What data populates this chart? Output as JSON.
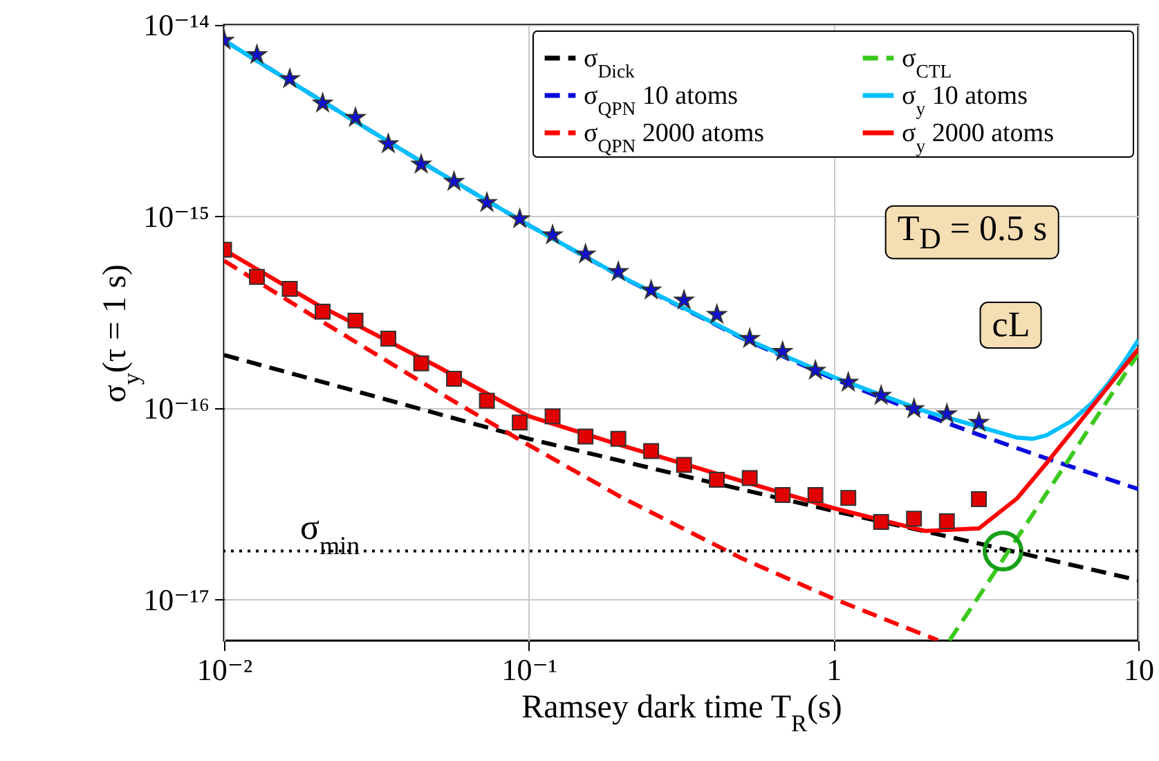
{
  "chart_data": {
    "type": "line",
    "xlabel": "Ramsey dark time T$_{R}$(s)",
    "ylabel": "σ$_{y}$(τ = 1 s)",
    "log": "xy",
    "xlim": [
      0.01,
      10
    ],
    "ylim": [
      6.1e-18,
      1e-14
    ],
    "xticks": [
      {
        "value": 0.01,
        "label": "10⁻²"
      },
      {
        "value": 0.1,
        "label": "10⁻¹"
      },
      1,
      10
    ],
    "yticks": [
      {
        "value": 1e-17,
        "label": "10⁻¹⁷"
      },
      {
        "value": 1e-16,
        "label": "10⁻¹⁶"
      },
      {
        "value": 1e-15,
        "label": "10⁻¹⁵"
      },
      {
        "value": 1e-14,
        "label": "10⁻¹⁴"
      }
    ],
    "grid": true,
    "legend": "top right",
    "series": [
      {
        "name": "σ$_{Dick}$",
        "color": "#000000",
        "line_style": "dashed",
        "x": [
          0.01,
          0.03,
          0.1,
          0.3,
          1,
          3,
          10
        ],
        "values": [
          1.89e-16,
          1.17e-16,
          6.9e-17,
          4.54e-17,
          2.9e-17,
          1.96e-17,
          1.26e-17
        ]
      },
      {
        "name": "σ$_{QPN}$ 10 atoms",
        "color": "#0a0adc",
        "line_style": "dashed",
        "x": [
          0.01,
          0.02,
          0.05,
          0.1,
          0.2,
          0.5,
          1,
          2,
          3,
          5,
          10
        ],
        "values": [
          8.3e-15,
          4.19e-15,
          1.72e-15,
          9e-16,
          4.86e-16,
          2.32e-16,
          1.42e-16,
          9.19e-17,
          7.25e-17,
          5.45e-17,
          3.77e-17
        ]
      },
      {
        "name": "σ$_{QPN}$ 2000 atoms",
        "color": "#ff0000",
        "line_style": "dashed",
        "x": [
          0.01,
          0.02,
          0.05,
          0.1,
          0.2,
          0.5,
          1,
          2,
          2.2
        ],
        "values": [
          5.87e-16,
          2.96e-16,
          1.22e-16,
          6.4e-17,
          3.44e-17,
          1.64e-17,
          1.01e-17,
          6.5e-18,
          6.14e-18
        ]
      },
      {
        "name": "σ$_{CTL}$",
        "color": "#3cc81e",
        "line_style": "dashed",
        "x": [
          2.4,
          3,
          4,
          5,
          7,
          10
        ],
        "values": [
          6.1e-18,
          1.04e-17,
          2.09e-17,
          3.58e-17,
          8.1e-17,
          1.92e-16
        ]
      },
      {
        "name": "σ$_{y}$ 10 atoms",
        "color": "#00bfff",
        "line_style": "solid",
        "x": [
          0.01,
          0.02,
          0.05,
          0.1,
          0.2,
          0.5,
          1,
          2,
          3,
          4,
          4.5,
          5,
          6,
          7,
          8,
          9,
          10
        ],
        "values": [
          8.3e-15,
          4.19e-15,
          1.72e-15,
          9e-16,
          4.88e-16,
          2.34e-16,
          1.45e-16,
          9.6e-17,
          8e-17,
          7e-17,
          6.9e-17,
          7.2e-17,
          8.5e-17,
          1.05e-16,
          1.35e-16,
          1.75e-16,
          2.26e-16
        ]
      },
      {
        "name": "σ$_{y}$ 2000 atoms",
        "color": "#ff0000",
        "line_style": "solid",
        "x": [
          0.01,
          0.02,
          0.05,
          0.1,
          0.2,
          0.5,
          1,
          2,
          3,
          4,
          5,
          7,
          10
        ],
        "values": [
          6.7e-16,
          3.5e-16,
          1.65e-16,
          9.05e-17,
          6.4e-17,
          4.15e-17,
          3e-17,
          2.28e-17,
          2.35e-17,
          3.37e-17,
          5.15e-17,
          1e-16,
          2.03e-16
        ]
      },
      {
        "type": "scatter",
        "color": "#1010d0",
        "marker": "star",
        "x": [
          0.01,
          0.01282,
          0.01643,
          0.02106,
          0.027,
          0.0346,
          0.04435,
          0.05685,
          0.07287,
          0.0934,
          0.1197,
          0.1535,
          0.1967,
          0.2521,
          0.3232,
          0.4142,
          0.531,
          0.6806,
          0.8724,
          1.118,
          1.433,
          1.837,
          2.355,
          3.0
        ],
        "values": [
          8.3e-15,
          6.98e-15,
          5.23e-15,
          3.9e-15,
          3.28e-15,
          2.39e-15,
          1.87e-15,
          1.52e-15,
          1.18e-15,
          9.7e-16,
          8e-16,
          6.35e-16,
          5.14e-16,
          4.12e-16,
          3.65e-16,
          3.07e-16,
          2.3e-16,
          1.97e-16,
          1.57e-16,
          1.36e-16,
          1.16e-16,
          9.9e-17,
          9.3e-17,
          8.4e-17
        ]
      },
      {
        "type": "scatter",
        "color": "#e00000",
        "marker": "square",
        "x": [
          0.01,
          0.01282,
          0.01643,
          0.02106,
          0.027,
          0.0346,
          0.04435,
          0.05685,
          0.07287,
          0.0934,
          0.1197,
          0.1535,
          0.1967,
          0.2521,
          0.3232,
          0.4142,
          0.531,
          0.6806,
          0.8724,
          1.118,
          1.433,
          1.837,
          2.355,
          3.0
        ],
        "values": [
          6.7e-16,
          4.83e-16,
          4.19e-16,
          3.18e-16,
          2.86e-16,
          2.3e-16,
          1.71e-16,
          1.42e-16,
          1.09e-16,
          8.4e-17,
          9.05e-17,
          7.1e-17,
          6.9e-17,
          5.96e-17,
          5.04e-17,
          4.22e-17,
          4.31e-17,
          3.51e-17,
          3.51e-17,
          3.39e-17,
          2.54e-17,
          2.64e-17,
          2.56e-17,
          3.34e-17
        ]
      },
      {
        "type": "scatter",
        "color": "#18a018",
        "marker": "circle",
        "x": [
          3.6
        ],
        "values": [
          1.79e-17
        ]
      }
    ],
    "ref_lines": [
      {
        "axis": "y",
        "value": 1.79e-17,
        "label": "σ$_{min}$",
        "line_style": "dotted",
        "color": "#000000"
      }
    ],
    "annotations": [
      "T$_{D}$ = 0.5 s",
      "cL"
    ]
  }
}
